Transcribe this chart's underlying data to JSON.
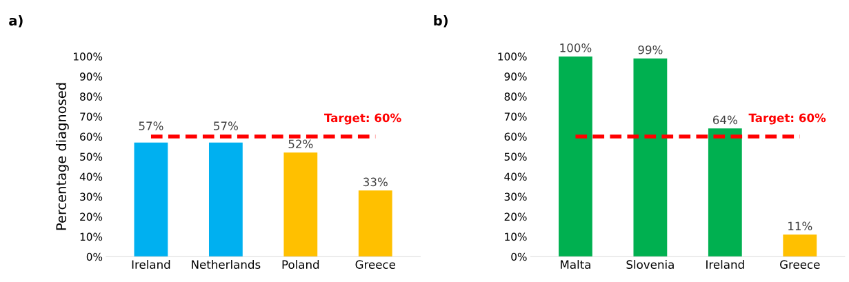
{
  "chart_data": [
    {
      "type": "bar",
      "title": "a)",
      "ylabel": "Percentage diagnosed",
      "categories": [
        "Ireland",
        "Netherlands",
        "Poland",
        "Greece"
      ],
      "values": [
        57,
        57,
        52,
        33
      ],
      "colors": [
        "#00b0f0",
        "#00b0f0",
        "#ffc000",
        "#ffc000"
      ],
      "value_labels": [
        "57%",
        "57%",
        "52%",
        "33%"
      ],
      "ylim": [
        0,
        100
      ],
      "yticks": [
        {
          "value": 0,
          "label": "0%"
        },
        {
          "value": 10,
          "label": "10%"
        },
        {
          "value": 20,
          "label": "20%"
        },
        {
          "value": 30,
          "label": "30%"
        },
        {
          "value": 40,
          "label": "40%"
        },
        {
          "value": 50,
          "label": "50%"
        },
        {
          "value": 60,
          "label": "60%"
        },
        {
          "value": 70,
          "label": "70%"
        },
        {
          "value": 80,
          "label": "80%"
        },
        {
          "value": 90,
          "label": "90%"
        },
        {
          "value": 100,
          "label": "100%"
        }
      ],
      "ref_lines": [
        {
          "axis": "y",
          "value": 60,
          "label": "Target: 60%",
          "color": "#ff0000",
          "line_style": "dashed"
        }
      ],
      "grid": false,
      "legend": false
    },
    {
      "type": "bar",
      "title": "b)",
      "categories": [
        "Malta",
        "Slovenia",
        "Ireland",
        "Greece"
      ],
      "values": [
        100,
        99,
        64,
        11
      ],
      "colors": [
        "#00b050",
        "#00b050",
        "#00b050",
        "#ffc000"
      ],
      "value_labels": [
        "100%",
        "99%",
        "64%",
        "11%"
      ],
      "ylim": [
        0,
        100
      ],
      "yticks": [
        {
          "value": 0,
          "label": "0%"
        },
        {
          "value": 10,
          "label": "10%"
        },
        {
          "value": 20,
          "label": "20%"
        },
        {
          "value": 30,
          "label": "30%"
        },
        {
          "value": 40,
          "label": "40%"
        },
        {
          "value": 50,
          "label": "50%"
        },
        {
          "value": 60,
          "label": "60%"
        },
        {
          "value": 70,
          "label": "70%"
        },
        {
          "value": 80,
          "label": "80%"
        },
        {
          "value": 90,
          "label": "90%"
        },
        {
          "value": 100,
          "label": "100%"
        }
      ],
      "ref_lines": [
        {
          "axis": "y",
          "value": 60,
          "label": "Target: 60%",
          "color": "#ff0000",
          "line_style": "dashed"
        }
      ],
      "grid": false,
      "legend": false
    }
  ]
}
